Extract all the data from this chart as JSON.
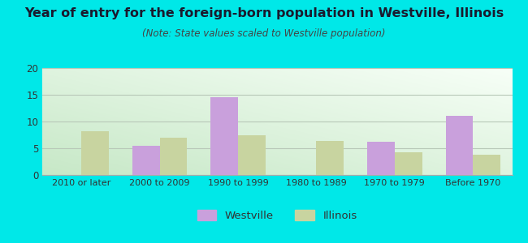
{
  "title": "Year of entry for the foreign-born population in Westville, Illinois",
  "subtitle": "(Note: State values scaled to Westville population)",
  "categories": [
    "2010 or later",
    "2000 to 2009",
    "1990 to 1999",
    "1980 to 1989",
    "1970 to 1979",
    "Before 1970"
  ],
  "westville_values": [
    0,
    5.5,
    14.5,
    0,
    6.2,
    11.0
  ],
  "illinois_values": [
    8.2,
    7.0,
    7.5,
    6.4,
    4.2,
    3.8
  ],
  "westville_color": "#c9a0dc",
  "illinois_color": "#c8d4a0",
  "ylim": [
    0,
    20
  ],
  "yticks": [
    0,
    5,
    10,
    15,
    20
  ],
  "background_color": "#00e8e8",
  "plot_bg_color_topleft": "#e0f0e0",
  "plot_bg_color_bottomleft": "#c8e8c8",
  "plot_bg_color_right": "#f8fef8",
  "title_fontsize": 11.5,
  "subtitle_fontsize": 8.5,
  "bar_width": 0.35,
  "grid_color": "#b8c8b8",
  "legend_westville": "Westville",
  "legend_illinois": "Illinois"
}
